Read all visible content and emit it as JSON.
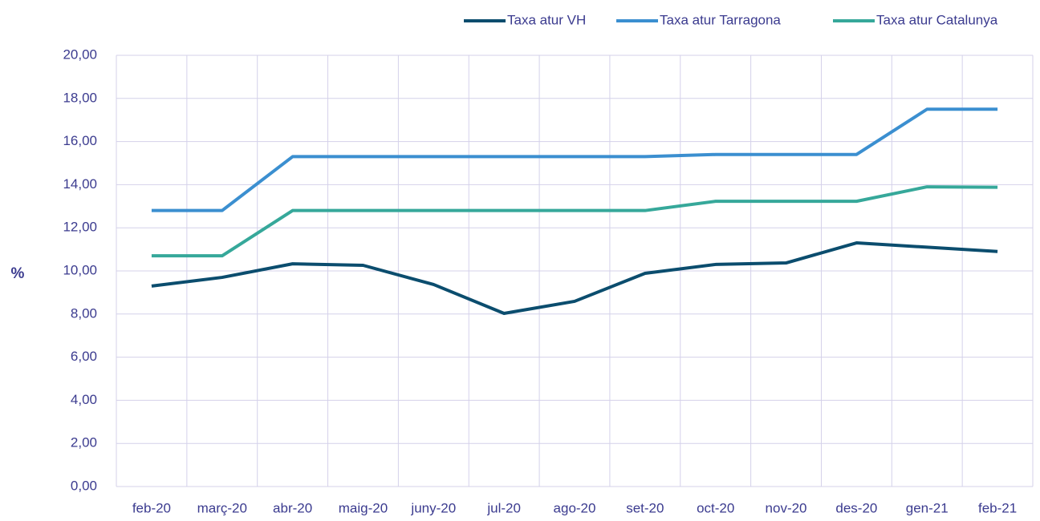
{
  "chart_data": {
    "type": "line",
    "y_label": "%",
    "categories": [
      "feb-20",
      "març-20",
      "abr-20",
      "maig-20",
      "juny-20",
      "jul-20",
      "ago-20",
      "set-20",
      "oct-20",
      "nov-20",
      "des-20",
      "gen-21",
      "feb-21"
    ],
    "series": [
      {
        "name": "Taxa atur VH",
        "color": "#0b4d6e",
        "values": [
          9.3,
          9.7,
          10.33,
          10.26,
          9.37,
          8.03,
          8.59,
          9.89,
          10.3,
          10.37,
          11.3,
          11.1,
          10.9
        ]
      },
      {
        "name": "Taxa atur Tarragona",
        "color": "#3b8fd0",
        "values": [
          12.8,
          12.8,
          15.3,
          15.3,
          15.3,
          15.3,
          15.3,
          15.3,
          15.4,
          15.4,
          15.4,
          17.5,
          17.5
        ]
      },
      {
        "name": "Taxa atur Catalunya",
        "color": "#36a89a",
        "values": [
          10.7,
          10.7,
          12.8,
          12.8,
          12.8,
          12.8,
          12.8,
          12.8,
          13.23,
          13.23,
          13.23,
          13.9,
          13.88
        ]
      }
    ],
    "ylim": [
      0,
      20
    ],
    "yticks": [
      {
        "value": 0,
        "label": "0,00"
      },
      {
        "value": 2,
        "label": "2,00"
      },
      {
        "value": 4,
        "label": "4,00"
      },
      {
        "value": 6,
        "label": "6,00"
      },
      {
        "value": 8,
        "label": "8,00"
      },
      {
        "value": 10,
        "label": "10,00"
      },
      {
        "value": 12,
        "label": "12,00"
      },
      {
        "value": 14,
        "label": "14,00"
      },
      {
        "value": 16,
        "label": "16,00"
      },
      {
        "value": 18,
        "label": "18,00"
      },
      {
        "value": 20,
        "label": "20,00"
      }
    ],
    "grid": true,
    "legend": "top-right"
  }
}
